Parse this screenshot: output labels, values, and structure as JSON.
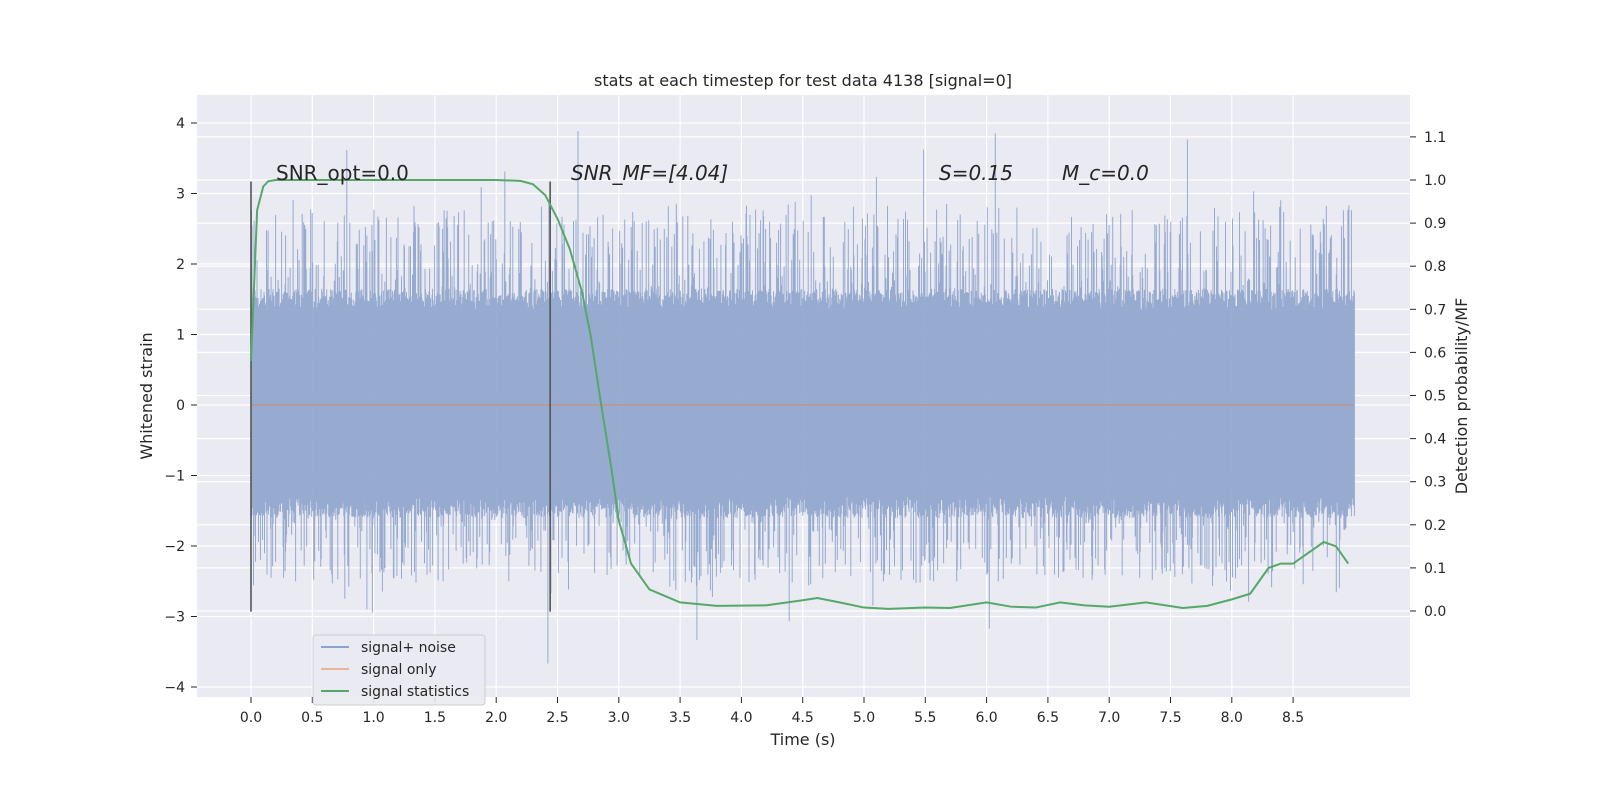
{
  "chart_data": {
    "type": "line",
    "title": "stats at each timestep for test data 4138 [signal=0]",
    "xlabel": "Time (s)",
    "ylabel": "Whitened strain",
    "y2label": "Detection probability/MF",
    "xlim": [
      -0.44,
      9.45
    ],
    "ylim": [
      -4.15,
      4.4
    ],
    "y2lim": [
      -0.2,
      1.2
    ],
    "xticks": [
      "0.0",
      "0.5",
      "1.0",
      "1.5",
      "2.0",
      "2.5",
      "3.0",
      "3.5",
      "4.0",
      "4.5",
      "5.0",
      "5.5",
      "6.0",
      "6.5",
      "7.0",
      "7.5",
      "8.0",
      "8.5"
    ],
    "yticks": [
      "−4",
      "−3",
      "−2",
      "−1",
      "0",
      "1",
      "2",
      "3",
      "4"
    ],
    "y2ticks": [
      "0.0",
      "0.1",
      "0.2",
      "0.3",
      "0.4",
      "0.5",
      "0.6",
      "0.7",
      "0.8",
      "0.9",
      "1.0",
      "1.1"
    ],
    "grid": true,
    "legend_position": "lower-left",
    "annotations": [
      "SNR_opt=0.0",
      "SNR_MF=[4.04]",
      "S=0.15",
      "M_c=0.0"
    ],
    "vertical_lines_x": [
      0.0,
      2.44
    ],
    "series": [
      {
        "name": "signal+ noise",
        "color": "#8ea3cc",
        "axis": "left",
        "note_range": [
          -3.8,
          4.02
        ],
        "x_range": [
          0.0,
          9.0
        ]
      },
      {
        "name": "signal only",
        "color": "#dd8452",
        "axis": "left",
        "x": [
          0.0,
          9.0
        ],
        "y": [
          0,
          0
        ]
      },
      {
        "name": "signal statistics",
        "color": "#55a868",
        "axis": "right",
        "x": [
          0.0,
          0.05,
          0.1,
          0.14,
          0.2,
          0.5,
          1.0,
          1.5,
          2.0,
          2.2,
          2.3,
          2.4,
          2.5,
          2.6,
          2.7,
          2.77,
          2.85,
          2.94,
          3.0,
          3.1,
          3.25,
          3.5,
          3.8,
          4.2,
          4.5,
          4.62,
          4.8,
          5.0,
          5.2,
          5.5,
          5.7,
          6.0,
          6.2,
          6.4,
          6.6,
          6.8,
          7.0,
          7.3,
          7.6,
          7.8,
          8.0,
          8.15,
          8.3,
          8.4,
          8.5,
          8.6,
          8.75,
          8.85,
          8.95
        ],
        "y": [
          0.58,
          0.93,
          0.985,
          0.997,
          1.0,
          1.0,
          1.0,
          1.0,
          1.0,
          0.998,
          0.99,
          0.965,
          0.91,
          0.84,
          0.74,
          0.64,
          0.49,
          0.33,
          0.21,
          0.11,
          0.05,
          0.02,
          0.012,
          0.013,
          0.025,
          0.03,
          0.02,
          0.008,
          0.005,
          0.008,
          0.007,
          0.02,
          0.01,
          0.008,
          0.02,
          0.013,
          0.01,
          0.02,
          0.007,
          0.012,
          0.027,
          0.04,
          0.1,
          0.11,
          0.11,
          0.13,
          0.16,
          0.15,
          0.11
        ]
      }
    ]
  }
}
